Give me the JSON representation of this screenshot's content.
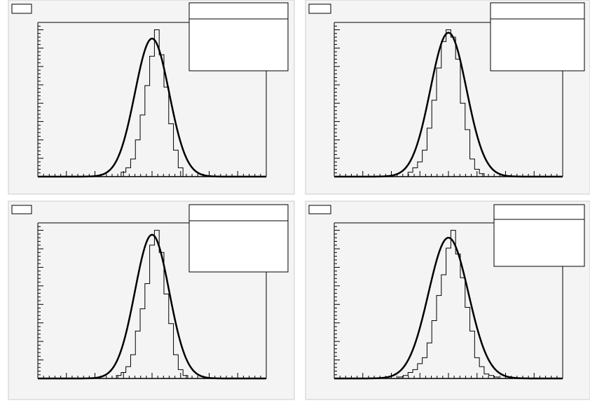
{
  "chart_data": [
    {
      "type": "bar",
      "title": "",
      "xlabel": "",
      "ylabel": "",
      "xlim": [
        -6,
        6
      ],
      "ylim": [
        0,
        1.05
      ],
      "grid": false,
      "histogram": {
        "x": [
          -1.5,
          -1.25,
          -1.0,
          -0.75,
          -0.5,
          -0.25,
          0.0,
          0.25,
          0.5,
          0.75,
          1.0,
          1.25,
          1.5
        ],
        "values": [
          0.03,
          0.06,
          0.12,
          0.25,
          0.42,
          0.62,
          0.82,
          1.0,
          0.83,
          0.61,
          0.36,
          0.18,
          0.06
        ]
      },
      "fit": {
        "type": "gaussian",
        "mean": 0.0,
        "sigma": 0.9,
        "amplitude": 0.94
      },
      "stats_box": "top-right",
      "title_box": "top-left"
    },
    {
      "type": "bar",
      "title": "",
      "xlabel": "",
      "ylabel": "",
      "xlim": [
        -6,
        6
      ],
      "ylim": [
        0,
        1.05
      ],
      "grid": false,
      "histogram": {
        "x": [
          -2.0,
          -1.75,
          -1.5,
          -1.25,
          -1.0,
          -0.75,
          -0.5,
          -0.25,
          0.0,
          0.25,
          0.5,
          0.75,
          1.0,
          1.25,
          1.5,
          1.75
        ],
        "values": [
          0.03,
          0.06,
          0.1,
          0.18,
          0.33,
          0.52,
          0.74,
          0.92,
          1.0,
          0.95,
          0.8,
          0.5,
          0.32,
          0.12,
          0.05,
          0.02
        ]
      },
      "fit": {
        "type": "gaussian",
        "mean": 0.0,
        "sigma": 0.95,
        "amplitude": 0.98
      },
      "stats_box": "top-right",
      "title_box": "top-left"
    },
    {
      "type": "bar",
      "title": "",
      "xlabel": "",
      "ylabel": "",
      "xlim": [
        -6,
        6
      ],
      "ylim": [
        0,
        1.05
      ],
      "grid": false,
      "histogram": {
        "x": [
          -1.75,
          -1.5,
          -1.25,
          -1.0,
          -0.75,
          -0.5,
          -0.25,
          0.0,
          0.25,
          0.5,
          0.75,
          1.0,
          1.25,
          1.5,
          1.75
        ],
        "values": [
          0.02,
          0.04,
          0.08,
          0.16,
          0.32,
          0.47,
          0.64,
          0.9,
          1.0,
          0.85,
          0.57,
          0.37,
          0.16,
          0.06,
          0.02
        ]
      },
      "fit": {
        "type": "gaussian",
        "mean": 0.0,
        "sigma": 0.9,
        "amplitude": 0.97
      },
      "stats_box": "top-right",
      "title_box": "top-left"
    },
    {
      "type": "bar",
      "title": "",
      "xlabel": "",
      "ylabel": "",
      "xlim": [
        -6,
        6
      ],
      "ylim": [
        0,
        1.05
      ],
      "grid": false,
      "histogram": {
        "x": [
          -2.5,
          -2.25,
          -2.0,
          -1.75,
          -1.5,
          -1.25,
          -1.0,
          -0.75,
          -0.5,
          -0.25,
          0.0,
          0.25,
          0.5,
          0.75,
          1.0,
          1.25,
          1.5,
          1.75,
          2.0,
          2.25,
          2.5
        ],
        "values": [
          0.01,
          0.02,
          0.04,
          0.06,
          0.1,
          0.14,
          0.24,
          0.39,
          0.56,
          0.7,
          0.88,
          1.0,
          0.84,
          0.68,
          0.48,
          0.32,
          0.14,
          0.08,
          0.03,
          0.02,
          0.01
        ]
      },
      "fit": {
        "type": "gaussian",
        "mean": 0.0,
        "sigma": 1.05,
        "amplitude": 0.95
      },
      "stats_box": "top-right",
      "title_box": "top-left"
    }
  ],
  "colors": {
    "pad_background": "#f4f4f4",
    "frame": "#000000",
    "histogram_line": "#000000",
    "fit_line": "#000000",
    "separator": "#cccccc"
  }
}
